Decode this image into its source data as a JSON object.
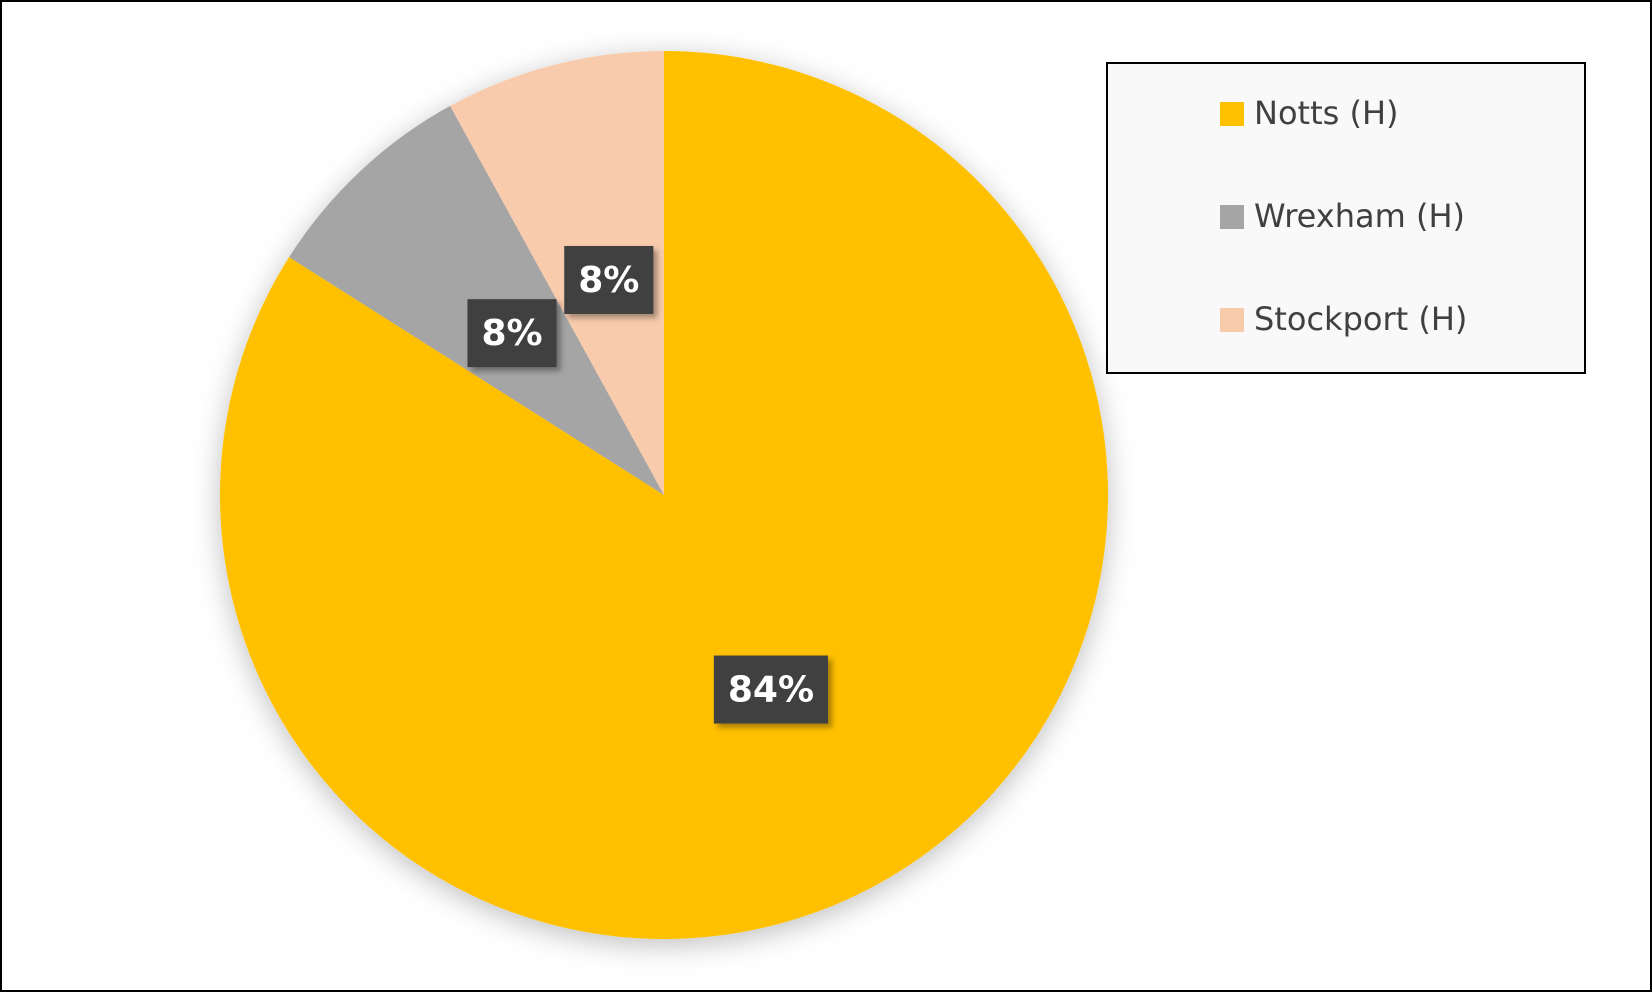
{
  "chart_data": {
    "type": "pie",
    "categories": [
      "Notts (H)",
      "Wrexham (H)",
      "Stockport (H)"
    ],
    "values": [
      84,
      8,
      8
    ],
    "value_labels": [
      "84%",
      "8%",
      "8%"
    ],
    "colors": [
      "#ffc000",
      "#a5a5a5",
      "#f8cbad"
    ],
    "legend": "top-right"
  }
}
